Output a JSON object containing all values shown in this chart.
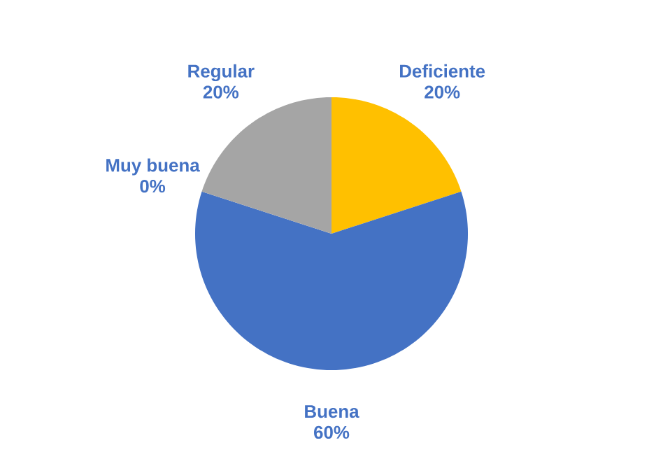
{
  "chart_data": {
    "type": "pie",
    "categories": [
      "Deficiente",
      "Buena",
      "Muy buena",
      "Regular"
    ],
    "values": [
      20,
      60,
      0,
      20
    ],
    "value_labels": [
      "20%",
      "60%",
      "0%",
      "20%"
    ],
    "colors": [
      "#ffc000",
      "#4472c4",
      "#5b9bd5",
      "#a5a5a5"
    ]
  }
}
